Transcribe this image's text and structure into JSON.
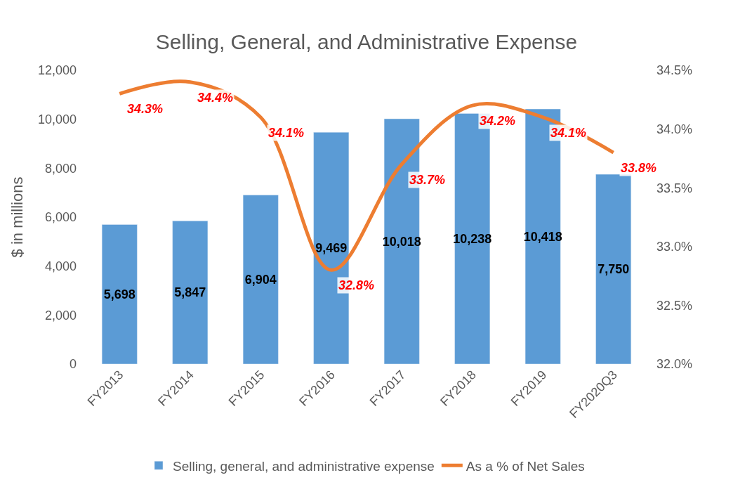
{
  "chart_data": {
    "type": "bar",
    "title": "Selling, General, and Administrative Expense",
    "ylabel": "$ in millions",
    "categories": [
      "FY2013",
      "FY2014",
      "FY2015",
      "FY2016",
      "FY2017",
      "FY2018",
      "FY2019",
      "FY2020Q3"
    ],
    "series": [
      {
        "name": "Selling, general, and administrative expense",
        "color": "#5b9bd5",
        "values": [
          5698,
          5847,
          6904,
          9469,
          10018,
          10238,
          10418,
          7750
        ],
        "value_labels": [
          "5,698",
          "5,847",
          "6,904",
          "9,469",
          "10,018",
          "10,238",
          "10,418",
          "7,750"
        ]
      },
      {
        "name": "As a % of Net Sales",
        "type": "line",
        "axis": "y2",
        "color": "#ed7d31",
        "values": [
          34.3,
          34.4,
          34.1,
          32.8,
          33.7,
          34.2,
          34.1,
          33.8
        ],
        "value_labels": [
          "34.3%",
          "34.4%",
          "34.1%",
          "32.8%",
          "33.7%",
          "34.2%",
          "34.1%",
          "33.8%"
        ]
      }
    ],
    "ylim": [
      0,
      12000
    ],
    "yticks": [
      0,
      {
        "value": 2000,
        "label": "2,000"
      },
      {
        "value": 4000,
        "label": "4,000"
      },
      {
        "value": 6000,
        "label": "6,000"
      },
      {
        "value": 8000,
        "label": "8,000"
      },
      {
        "value": 10000,
        "label": "10,000"
      },
      {
        "value": 12000,
        "label": "12,000"
      }
    ],
    "y2lim": [
      32.0,
      34.5
    ],
    "y2ticks": [
      {
        "value": 32.0,
        "label": "32.0%"
      },
      {
        "value": 32.5,
        "label": "32.5%"
      },
      {
        "value": 33.0,
        "label": "33.0%"
      },
      {
        "value": 33.5,
        "label": "33.5%"
      },
      {
        "value": 34.0,
        "label": "34.0%"
      },
      {
        "value": 34.5,
        "label": "34.5%"
      }
    ],
    "legend": "bottom",
    "marker": "none",
    "line_style": "solid"
  }
}
